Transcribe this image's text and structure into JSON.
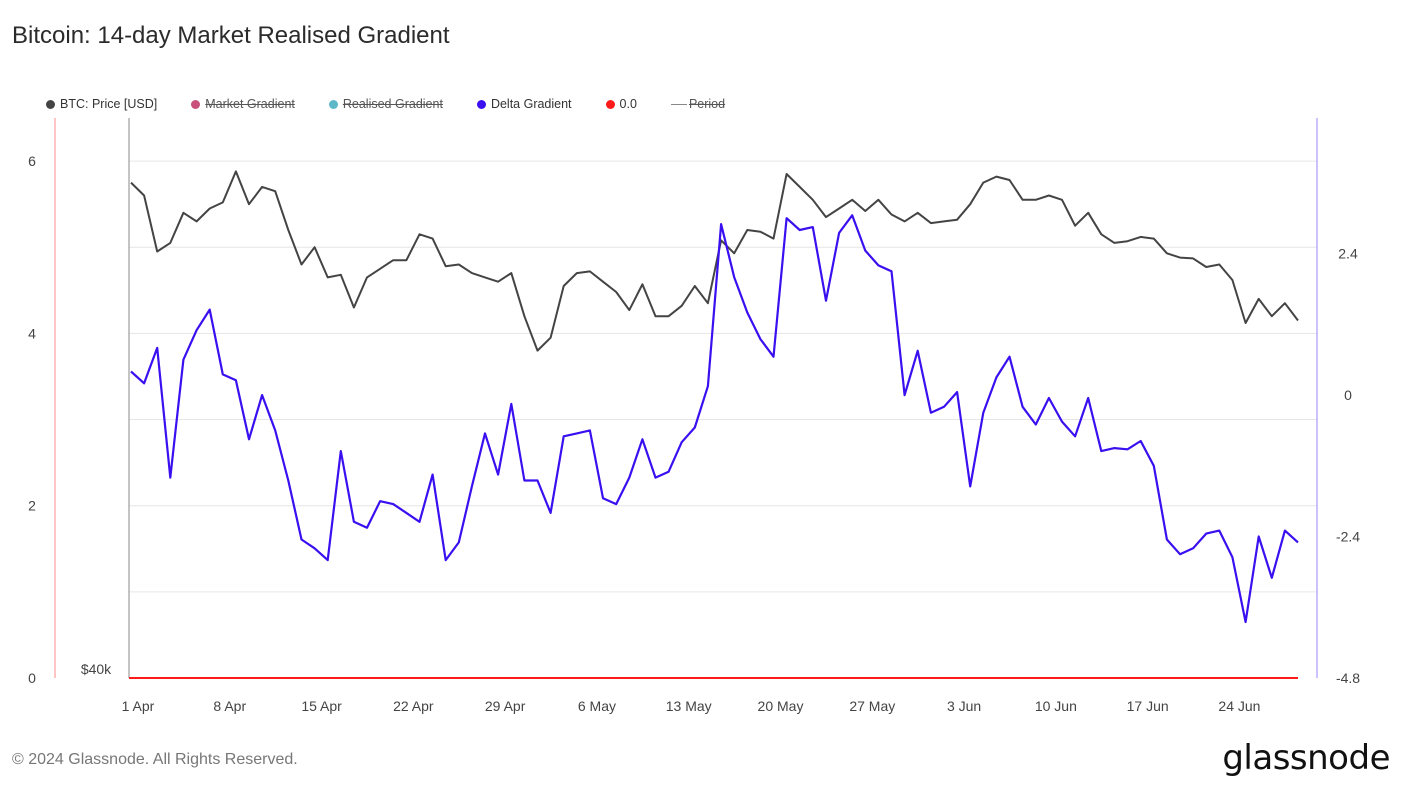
{
  "title": "Bitcoin: 14-day Market Realised Gradient",
  "legend": [
    {
      "label": "BTC: Price [USD]",
      "color": "#444444",
      "off": false,
      "kind": "dot"
    },
    {
      "label": "Market Gradient",
      "color": "#c8507a",
      "off": true,
      "kind": "dot"
    },
    {
      "label": "Realised Gradient",
      "color": "#5fb8c8",
      "off": true,
      "kind": "dot"
    },
    {
      "label": "Delta Gradient",
      "color": "#3a0ff0",
      "off": false,
      "kind": "dot"
    },
    {
      "label": "0.0",
      "color": "#ff1a1a",
      "off": false,
      "kind": "dot"
    },
    {
      "label": "Period",
      "color": "#888888",
      "off": true,
      "kind": "line"
    }
  ],
  "footer": "© 2024 Glassnode. All Rights Reserved.",
  "logo": "glassnode",
  "chart_data": {
    "type": "line",
    "x_tick_labels": [
      "1 Apr",
      "8 Apr",
      "15 Apr",
      "22 Apr",
      "29 Apr",
      "6 May",
      "13 May",
      "20 May",
      "27 May",
      "3 Jun",
      "10 Jun",
      "17 Jun",
      "24 Jun"
    ],
    "left_axis": {
      "ticks": [
        "0",
        "2",
        "4",
        "6"
      ],
      "range": [
        0,
        6.5
      ],
      "price_label": "$40k"
    },
    "right_axis": {
      "ticks": [
        "-4.8",
        "-2.4",
        "0",
        "2.4"
      ],
      "range": [
        -4.8,
        4.7
      ]
    },
    "series": [
      {
        "name": "BTC: Price [USD]",
        "color": "#444444",
        "axis": "left",
        "values": [
          5.75,
          5.6,
          4.95,
          5.05,
          5.4,
          5.3,
          5.45,
          5.52,
          5.88,
          5.5,
          5.7,
          5.65,
          5.2,
          4.8,
          5.0,
          4.65,
          4.68,
          4.3,
          4.65,
          4.75,
          4.85,
          4.85,
          5.15,
          5.1,
          4.78,
          4.8,
          4.7,
          4.65,
          4.6,
          4.7,
          4.2,
          3.8,
          3.95,
          4.55,
          4.7,
          4.72,
          4.6,
          4.48,
          4.27,
          4.57,
          4.2,
          4.2,
          4.32,
          4.55,
          4.35,
          5.08,
          4.93,
          5.2,
          5.18,
          5.1,
          5.85,
          5.7,
          5.55,
          5.35,
          5.45,
          5.55,
          5.42,
          5.55,
          5.38,
          5.3,
          5.4,
          5.28,
          5.3,
          5.32,
          5.5,
          5.75,
          5.82,
          5.78,
          5.55,
          5.55,
          5.6,
          5.55,
          5.25,
          5.4,
          5.15,
          5.05,
          5.07,
          5.12,
          5.1,
          4.93,
          4.88,
          4.87,
          4.77,
          4.8,
          4.62,
          4.12,
          4.4,
          4.2,
          4.35,
          4.15
        ]
      },
      {
        "name": "Delta Gradient",
        "color": "#3a0ff0",
        "axis": "right",
        "values": [
          0.4,
          0.2,
          0.8,
          -1.4,
          0.6,
          1.1,
          1.45,
          0.35,
          0.25,
          -0.75,
          0.0,
          -0.6,
          -1.45,
          -2.45,
          -2.6,
          -2.8,
          -0.95,
          -2.15,
          -2.25,
          -1.8,
          -1.85,
          -2.0,
          -2.15,
          -1.35,
          -2.8,
          -2.5,
          -1.55,
          -0.65,
          -1.35,
          -0.15,
          -1.45,
          -1.45,
          -2.0,
          -0.7,
          -0.65,
          -0.6,
          -1.75,
          -1.85,
          -1.4,
          -0.75,
          -1.4,
          -1.3,
          -0.8,
          -0.55,
          0.15,
          2.9,
          2.0,
          1.4,
          0.95,
          0.65,
          3.0,
          2.8,
          2.85,
          1.6,
          2.75,
          3.05,
          2.45,
          2.2,
          2.1,
          0.0,
          0.75,
          -0.3,
          -0.2,
          0.05,
          -1.55,
          -0.3,
          0.3,
          0.65,
          -0.2,
          -0.5,
          -0.05,
          -0.45,
          -0.7,
          -0.05,
          -0.95,
          -0.9,
          -0.92,
          -0.78,
          -1.2,
          -2.45,
          -2.7,
          -2.6,
          -2.35,
          -2.3,
          -2.75,
          -3.85,
          -2.4,
          -3.1,
          -2.3,
          -2.5
        ]
      },
      {
        "name": "0.0",
        "color": "#ff1a1a",
        "axis": "left",
        "values": [
          0.0
        ]
      }
    ],
    "grid": true
  }
}
